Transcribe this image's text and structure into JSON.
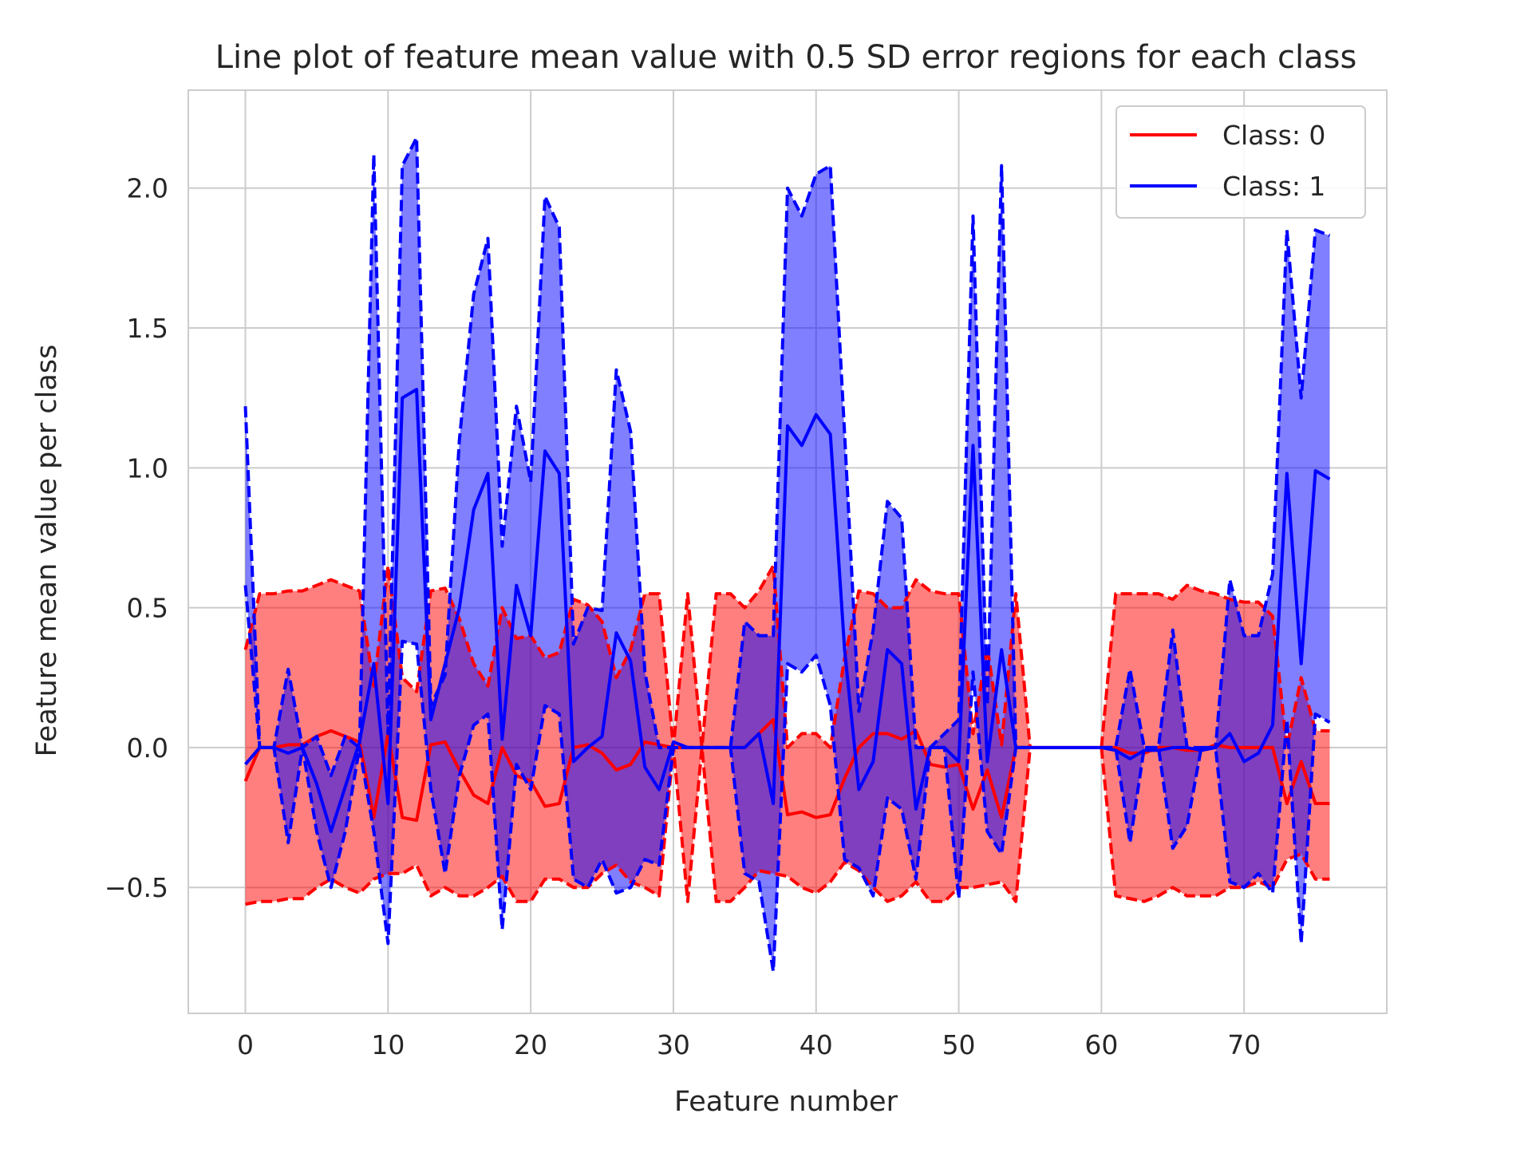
{
  "chart_data": {
    "type": "line",
    "title": "Line plot of feature mean value with 0.5 SD error regions for each class",
    "xlabel": "Feature number",
    "ylabel": "Feature mean value per class",
    "xlim": [
      -4,
      80
    ],
    "ylim": [
      -0.95,
      2.35
    ],
    "xticks": [
      0,
      10,
      20,
      30,
      40,
      50,
      60,
      70
    ],
    "yticks": [
      -0.5,
      0.0,
      0.5,
      1.0,
      1.5,
      2.0
    ],
    "ytick_labels": [
      "−0.5",
      "0.0",
      "0.5",
      "1.0",
      "1.5",
      "2.0"
    ],
    "grid": true,
    "legend_position": "top-right",
    "gap_range": [
      55,
      60
    ],
    "error_region": "mean ± 0.5 SD",
    "series": [
      {
        "name": "Class: 0",
        "color": "#ff0000",
        "fill_color": "#ff0000",
        "mean": [
          -0.12,
          0.0,
          0.0,
          0.01,
          0.01,
          0.04,
          0.06,
          0.04,
          0.02,
          -0.25,
          0.05,
          -0.25,
          -0.26,
          0.01,
          0.02,
          -0.08,
          -0.17,
          -0.2,
          0.0,
          -0.1,
          -0.12,
          -0.21,
          -0.2,
          0.0,
          0.01,
          -0.02,
          -0.08,
          -0.06,
          0.02,
          0.01,
          0.0,
          0.0,
          0.0,
          0.0,
          0.0,
          0.0,
          0.05,
          0.1,
          -0.24,
          -0.23,
          -0.25,
          -0.24,
          -0.11,
          0.0,
          0.05,
          0.05,
          0.03,
          0.06,
          -0.06,
          -0.07,
          -0.06,
          -0.22,
          -0.08,
          -0.25,
          0.0,
          0.0,
          0.0,
          0.0,
          0.0,
          0.0,
          0.0,
          0.0,
          -0.02,
          -0.02,
          0.0,
          0.0,
          -0.01,
          -0.01,
          0.01,
          0.0,
          0.0,
          0.0,
          0.0,
          -0.2,
          -0.05,
          -0.2,
          -0.2
        ],
        "upper": [
          0.35,
          0.55,
          0.55,
          0.56,
          0.56,
          0.58,
          0.6,
          0.58,
          0.56,
          0.22,
          0.65,
          0.25,
          0.2,
          0.56,
          0.57,
          0.46,
          0.3,
          0.22,
          0.5,
          0.39,
          0.4,
          0.32,
          0.34,
          0.53,
          0.51,
          0.45,
          0.25,
          0.35,
          0.55,
          0.55,
          0.0,
          0.55,
          0.0,
          0.55,
          0.55,
          0.5,
          0.56,
          0.65,
          0.0,
          0.05,
          0.05,
          0.0,
          0.32,
          0.56,
          0.55,
          0.5,
          0.5,
          0.6,
          0.56,
          0.55,
          0.55,
          0.05,
          0.36,
          0.01,
          0.55,
          0.0,
          0.0,
          0.0,
          0.0,
          0.0,
          0.0,
          0.55,
          0.55,
          0.55,
          0.55,
          0.53,
          0.58,
          0.56,
          0.55,
          0.53,
          0.52,
          0.52,
          0.47,
          0.0,
          0.25,
          0.06,
          0.06
        ],
        "lower": [
          -0.56,
          -0.55,
          -0.55,
          -0.54,
          -0.54,
          -0.5,
          -0.47,
          -0.5,
          -0.52,
          -0.47,
          -0.45,
          -0.45,
          -0.42,
          -0.53,
          -0.5,
          -0.53,
          -0.53,
          -0.5,
          -0.46,
          -0.55,
          -0.55,
          -0.47,
          -0.47,
          -0.5,
          -0.5,
          -0.45,
          -0.42,
          -0.48,
          -0.5,
          -0.53,
          0.0,
          -0.55,
          0.0,
          -0.55,
          -0.55,
          -0.5,
          -0.44,
          -0.45,
          -0.46,
          -0.5,
          -0.52,
          -0.48,
          -0.41,
          -0.44,
          -0.5,
          -0.55,
          -0.53,
          -0.48,
          -0.55,
          -0.55,
          -0.5,
          -0.5,
          -0.49,
          -0.48,
          -0.55,
          0.0,
          0.0,
          0.0,
          0.0,
          0.0,
          0.0,
          -0.53,
          -0.54,
          -0.55,
          -0.53,
          -0.5,
          -0.53,
          -0.53,
          -0.53,
          -0.5,
          -0.5,
          -0.48,
          -0.5,
          -0.4,
          -0.38,
          -0.47,
          -0.47
        ]
      },
      {
        "name": "Class: 1",
        "color": "#0000ff",
        "fill_color": "#0000ff",
        "mean": [
          -0.06,
          0.0,
          0.0,
          -0.02,
          0.0,
          -0.13,
          -0.3,
          -0.14,
          0.02,
          0.3,
          -0.2,
          1.25,
          1.28,
          0.1,
          0.3,
          0.5,
          0.85,
          0.98,
          0.03,
          0.58,
          0.4,
          1.06,
          0.98,
          -0.05,
          0.0,
          0.04,
          0.41,
          0.31,
          -0.07,
          -0.15,
          0.02,
          0.0,
          0.0,
          0.0,
          0.0,
          0.0,
          0.05,
          -0.2,
          1.15,
          1.08,
          1.19,
          1.12,
          0.35,
          -0.15,
          -0.05,
          0.35,
          0.3,
          -0.22,
          0.0,
          0.0,
          -0.05,
          1.08,
          -0.05,
          0.35,
          0.0,
          0.0,
          0.0,
          0.0,
          0.0,
          0.0,
          0.0,
          -0.01,
          -0.04,
          -0.01,
          -0.01,
          0.0,
          0.0,
          -0.01,
          0.0,
          0.05,
          -0.05,
          -0.02,
          0.08,
          0.98,
          0.3,
          0.99,
          0.96
        ],
        "upper": [
          1.22,
          0.0,
          0.0,
          0.28,
          0.0,
          0.04,
          -0.1,
          0.04,
          0.0,
          2.12,
          0.05,
          2.08,
          2.18,
          0.15,
          0.26,
          1.1,
          1.62,
          1.82,
          0.72,
          1.22,
          0.95,
          1.97,
          1.86,
          0.37,
          0.5,
          0.49,
          1.35,
          1.13,
          0.27,
          0.0,
          0.0,
          0.0,
          0.0,
          0.0,
          0.0,
          0.45,
          0.4,
          0.4,
          2.0,
          1.9,
          2.05,
          2.08,
          1.12,
          0.13,
          0.42,
          0.88,
          0.82,
          0.0,
          0.0,
          0.05,
          0.1,
          1.9,
          0.15,
          2.08,
          0.0,
          0.0,
          0.0,
          0.0,
          0.0,
          0.0,
          0.0,
          0.0,
          0.28,
          0.0,
          0.0,
          0.42,
          0.0,
          0.0,
          0.0,
          0.6,
          0.4,
          0.4,
          0.62,
          1.85,
          1.25,
          1.85,
          1.83
        ],
        "lower": [
          0.58,
          0.0,
          0.0,
          -0.34,
          0.0,
          -0.3,
          -0.5,
          -0.3,
          0.0,
          -0.3,
          -0.7,
          0.38,
          0.37,
          -0.15,
          -0.45,
          -0.1,
          0.08,
          0.12,
          -0.65,
          -0.06,
          -0.15,
          0.15,
          0.12,
          -0.47,
          -0.5,
          -0.4,
          -0.52,
          -0.5,
          -0.4,
          -0.42,
          0.0,
          0.0,
          0.0,
          0.0,
          0.0,
          -0.45,
          -0.48,
          -0.8,
          0.3,
          0.27,
          0.33,
          0.15,
          -0.4,
          -0.43,
          -0.53,
          -0.18,
          -0.22,
          -0.47,
          0.0,
          0.0,
          -0.54,
          0.27,
          -0.3,
          -0.38,
          0.0,
          0.0,
          0.0,
          0.0,
          0.0,
          0.0,
          0.0,
          0.0,
          -0.34,
          0.0,
          0.0,
          -0.36,
          -0.28,
          0.0,
          0.0,
          -0.48,
          -0.5,
          -0.45,
          -0.52,
          0.1,
          -0.7,
          0.12,
          0.09
        ]
      }
    ]
  }
}
